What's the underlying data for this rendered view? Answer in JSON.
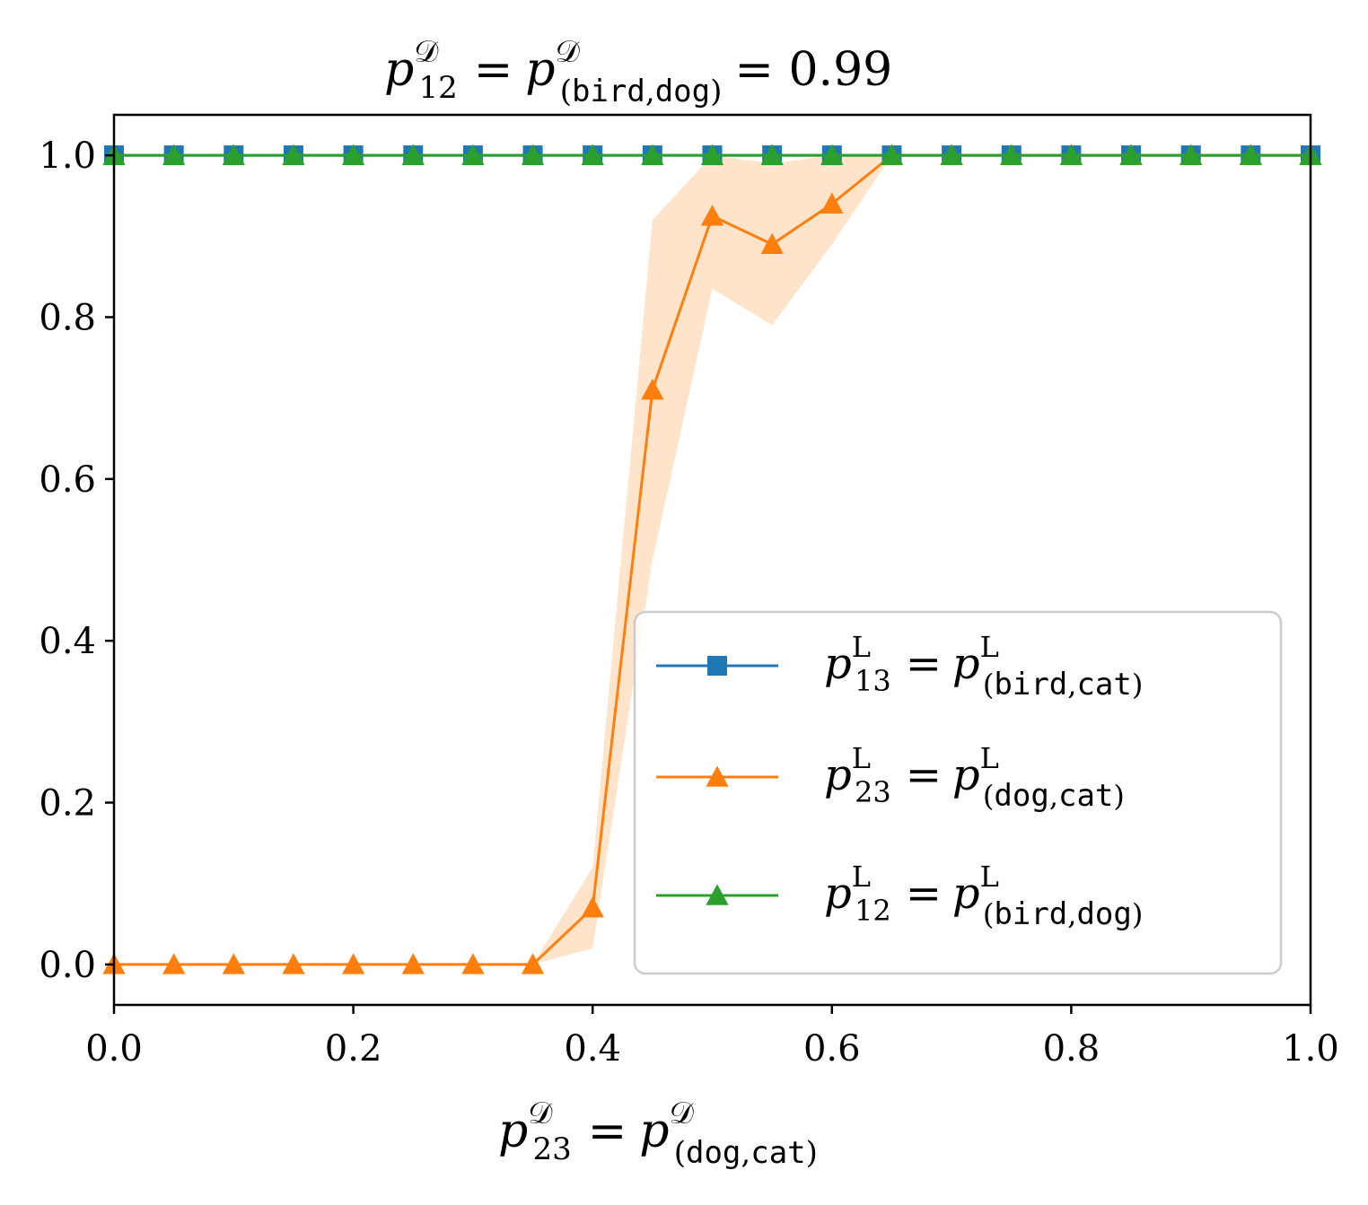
{
  "chart_data": {
    "type": "line",
    "title": {
      "lhs_base": "p",
      "lhs_sup": "𝒟",
      "lhs_sub": "12",
      "eq": "=",
      "rhs_base": "p",
      "rhs_sup": "𝒟",
      "rhs_sub_open": "(",
      "rhs_sub_a": "bird",
      "rhs_sub_comma": ",",
      "rhs_sub_b": "dog",
      "rhs_sub_close": ")",
      "tail": "= 0.99"
    },
    "xlabel": {
      "lhs_base": "p",
      "lhs_sup": "𝒟",
      "lhs_sub": "23",
      "eq": "=",
      "rhs_base": "p",
      "rhs_sup": "𝒟",
      "rhs_sub_open": "(",
      "rhs_sub_a": "dog",
      "rhs_sub_comma": ",",
      "rhs_sub_b": "cat",
      "rhs_sub_close": ")"
    },
    "ylabel": "",
    "xlim": [
      0.0,
      1.0
    ],
    "ylim": [
      -0.05,
      1.05
    ],
    "xticks": [
      0.0,
      0.2,
      0.4,
      0.6,
      0.8,
      1.0
    ],
    "xtick_labels": [
      "0.0",
      "0.2",
      "0.4",
      "0.6",
      "0.8",
      "1.0"
    ],
    "yticks": [
      0.0,
      0.2,
      0.4,
      0.6,
      0.8,
      1.0
    ],
    "ytick_labels": [
      "0.0",
      "0.2",
      "0.4",
      "0.6",
      "0.8",
      "1.0"
    ],
    "grid": false,
    "legend_position": "lower-right",
    "x": [
      0.0,
      0.05,
      0.1,
      0.15,
      0.2,
      0.25,
      0.3,
      0.35,
      0.4,
      0.45,
      0.5,
      0.55,
      0.6,
      0.65,
      0.7,
      0.75,
      0.8,
      0.85,
      0.9,
      0.95,
      1.0
    ],
    "series": [
      {
        "id": "p13",
        "color": "#1f77b4",
        "marker": "square",
        "legend": {
          "base": "p",
          "sup": "L",
          "sub": "13",
          "eq": "=",
          "rbase": "p",
          "rsup": "L",
          "open": "(",
          "a": "bird",
          "comma": ",",
          "b": "cat",
          "close": ")"
        },
        "values": [
          1,
          1,
          1,
          1,
          1,
          1,
          1,
          1,
          1,
          1,
          1,
          1,
          1,
          1,
          1,
          1,
          1,
          1,
          1,
          1,
          1
        ]
      },
      {
        "id": "p23",
        "color": "#ff7f0e",
        "band_color": "#ffe4cc",
        "marker": "triangle",
        "legend": {
          "base": "p",
          "sup": "L",
          "sub": "23",
          "eq": "=",
          "rbase": "p",
          "rsup": "L",
          "open": "(",
          "a": "dog",
          "comma": ",",
          "b": "cat",
          "close": ")"
        },
        "values": [
          0,
          0,
          0,
          0,
          0,
          0,
          0,
          0,
          0.07,
          0.71,
          0.925,
          0.89,
          0.94,
          1,
          1,
          1,
          1,
          1,
          1,
          1,
          1
        ],
        "band_upper": [
          0,
          0,
          0,
          0,
          0,
          0,
          0,
          0,
          0.12,
          0.92,
          1.0,
          0.99,
          1.0,
          1,
          1,
          1,
          1,
          1,
          1,
          1,
          1
        ],
        "band_lower": [
          0,
          0,
          0,
          0,
          0,
          0,
          0,
          0,
          0.02,
          0.5,
          0.835,
          0.79,
          0.89,
          1,
          1,
          1,
          1,
          1,
          1,
          1,
          1
        ]
      },
      {
        "id": "p12",
        "color": "#2ca02c",
        "marker": "triangle",
        "legend": {
          "base": "p",
          "sup": "L",
          "sub": "12",
          "eq": "=",
          "rbase": "p",
          "rsup": "L",
          "open": "(",
          "a": "bird",
          "comma": ",",
          "b": "dog",
          "close": ")"
        },
        "values": [
          1,
          1,
          1,
          1,
          1,
          1,
          1,
          1,
          1,
          1,
          1,
          1,
          1,
          1,
          1,
          1,
          1,
          1,
          1,
          1,
          1
        ]
      }
    ]
  }
}
